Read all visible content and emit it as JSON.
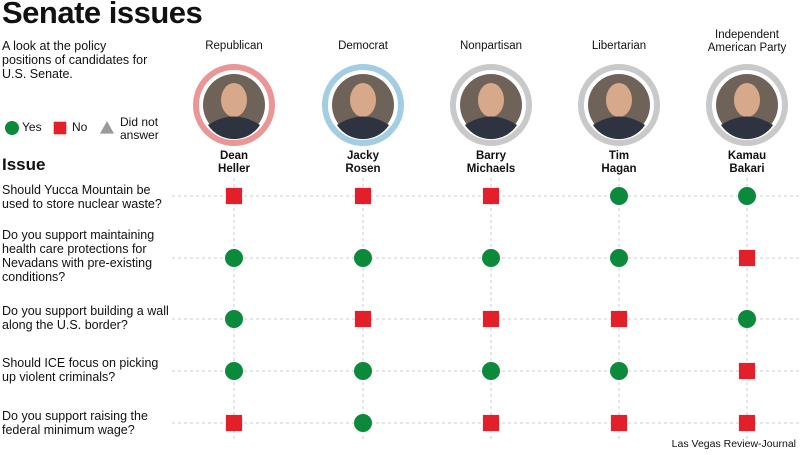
{
  "header": {
    "title": "Senate issues",
    "subtitle": "A look at the policy positions of candidates for U.S. Senate."
  },
  "legend": [
    {
      "label": "Yes",
      "color": "#0b8a3c",
      "shape": "circle"
    },
    {
      "label": "No",
      "color": "#e3202a",
      "shape": "square"
    },
    {
      "label": "Did not answer",
      "color": "#9a9a9a",
      "shape": "triangle"
    }
  ],
  "issue_heading": "Issue",
  "candidates": [
    {
      "party": "Republican",
      "first": "Dean",
      "last": "Heller",
      "ring": "#ea9596"
    },
    {
      "party": "Democrat",
      "first": "Jacky",
      "last": "Rosen",
      "ring": "#a3cde2"
    },
    {
      "party": "Nonpartisan",
      "first": "Barry",
      "last": "Michaels",
      "ring": "#c9c9c9"
    },
    {
      "party": "Libertarian",
      "first": "Tim",
      "last": "Hagan",
      "ring": "#c9c9c9"
    },
    {
      "party": "Independent American Party",
      "first": "Kamau",
      "last": "Bakari",
      "ring": "#c9c9c9"
    }
  ],
  "issues": [
    {
      "question": "Should Yucca Mountain be used to store nuclear waste?",
      "answers": [
        1,
        1,
        1,
        0,
        0
      ]
    },
    {
      "question": "Do you support maintaining health care protections for Nevadans with pre-existing conditions?",
      "answers": [
        0,
        0,
        0,
        0,
        1
      ]
    },
    {
      "question": "Do you support building a wall along the U.S. border?",
      "answers": [
        0,
        1,
        1,
        1,
        0
      ]
    },
    {
      "question": "Should ICE focus on picking up violent criminals?",
      "answers": [
        0,
        0,
        0,
        0,
        1
      ]
    },
    {
      "question": "Do you support raising the federal minimum wage?",
      "answers": [
        1,
        0,
        1,
        1,
        1
      ]
    }
  ],
  "source": "Las Vegas Review-Journal"
}
